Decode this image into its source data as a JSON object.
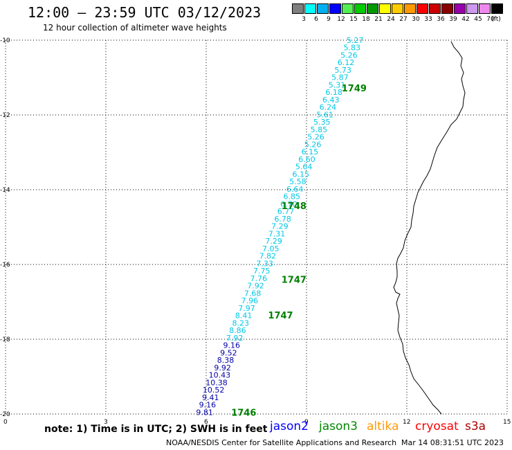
{
  "header": {
    "title": "12:00 — 23:59 UTC 03/12/2023",
    "subtitle": "12 hour collection of altimeter wave heights"
  },
  "legend": {
    "unit": "(ft)",
    "bins": [
      {
        "label": "3",
        "color": "#7f7f7f"
      },
      {
        "label": "6",
        "color": "#00ffff"
      },
      {
        "label": "9",
        "color": "#00b0f0"
      },
      {
        "label": "12",
        "color": "#0000ff"
      },
      {
        "label": "15",
        "color": "#55ee55"
      },
      {
        "label": "18",
        "color": "#00cc00"
      },
      {
        "label": "21",
        "color": "#009900"
      },
      {
        "label": "24",
        "color": "#ffff00"
      },
      {
        "label": "27",
        "color": "#ffcc00"
      },
      {
        "label": "30",
        "color": "#ff9900"
      },
      {
        "label": "33",
        "color": "#ff0000"
      },
      {
        "label": "36",
        "color": "#cc0000"
      },
      {
        "label": "39",
        "color": "#880000"
      },
      {
        "label": "42",
        "color": "#9900aa"
      },
      {
        "label": "45",
        "color": "#cc99ee"
      },
      {
        "label": "70",
        "color": "#ee88ee"
      },
      {
        "label": "",
        "color": "#000000"
      }
    ]
  },
  "axes": {
    "x_ticks": [
      "0",
      "3",
      "6",
      "9",
      "12",
      "15"
    ],
    "y_ticks": [
      "-10",
      "-12",
      "-14",
      "-16",
      "-18",
      "-20"
    ]
  },
  "track": {
    "light_color": "#00c8e6",
    "dark_color": "#0000a8",
    "values": [
      "5.27",
      "5.83",
      "5.26",
      "6.12",
      "5.73",
      "5.87",
      "5.31",
      "6.18",
      "6.43",
      "6.24",
      "5.61",
      "5.35",
      "5.85",
      "5.26",
      "5.26",
      "6.15",
      "6.60",
      "5.64",
      "6.15",
      "5.58",
      "6.64",
      "6.85",
      "6.70",
      "6.77",
      "6.78",
      "7.29",
      "7.31",
      "7.29",
      "7.05",
      "7.82",
      "7.33",
      "7.75",
      "7.76",
      "7.92",
      "7.68",
      "7.96",
      "7.97",
      "8.41",
      "8.23",
      "8.86",
      "7.92",
      "9.16",
      "9.52",
      "8.38",
      "9.92",
      "10.43",
      "10.38",
      "10.52",
      "9.41",
      "9.16",
      "9.81"
    ],
    "dark_from_index": 41,
    "pass_labels": [
      {
        "text": "1749",
        "lat": -11.28,
        "lon": 10.05
      },
      {
        "text": "1748",
        "lat": -14.43,
        "lon": 8.25
      },
      {
        "text": "1747",
        "lat": -16.4,
        "lon": 8.25
      },
      {
        "text": "1747",
        "lat": -17.35,
        "lon": 7.85
      },
      {
        "text": "1746",
        "lat": -19.95,
        "lon": 6.75
      }
    ]
  },
  "footer": {
    "note": "note: 1) Time is in UTC; 2) SWH is in feet",
    "satellites": [
      {
        "name": "jason2",
        "color": "#0000ff"
      },
      {
        "name": "jason3",
        "color": "#008800"
      },
      {
        "name": "altika",
        "color": "#ff9900"
      },
      {
        "name": "cryosat",
        "color": "#ff0000"
      },
      {
        "name": "s3a",
        "color": "#aa0000"
      }
    ],
    "credit": "NOAA/NESDIS Center for Satellite Applications and Research",
    "generated": "Mar 14 08:31:51 UTC 2023"
  }
}
